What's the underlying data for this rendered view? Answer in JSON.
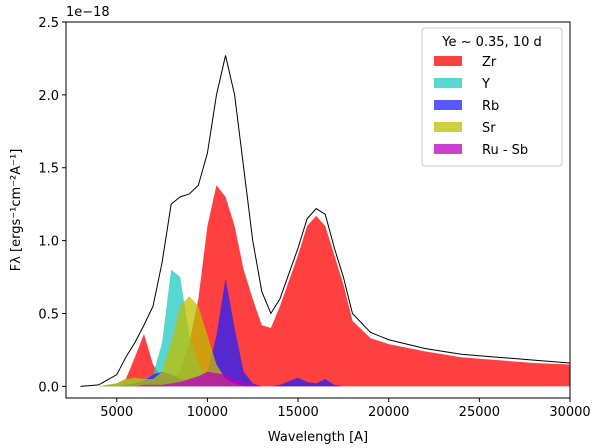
{
  "chart_data": {
    "type": "area",
    "offset_text": "1e−18",
    "xlabel": "Wavelength [A]",
    "ylabel": "Fλ [ergs⁻¹cm⁻²A⁻¹]",
    "legend_title": "Ye ~ 0.35, 10 d",
    "legend_loc": "upper right",
    "xlim": [
      2200,
      30000
    ],
    "ylim": [
      -0.08,
      2.5
    ],
    "xticks": [
      5000,
      10000,
      15000,
      20000,
      25000,
      30000
    ],
    "yticks": [
      {
        "value": 0,
        "label": "0.0"
      },
      {
        "value": 0.5,
        "label": "0.5"
      },
      {
        "value": 1,
        "label": "1.0"
      },
      {
        "value": 1.5,
        "label": "1.5"
      },
      {
        "value": 2,
        "label": "2.0"
      },
      {
        "value": 2.5,
        "label": "2.5"
      }
    ],
    "x": [
      3000,
      4000,
      5000,
      5500,
      6000,
      6500,
      7000,
      7500,
      8000,
      8500,
      9000,
      9500,
      10000,
      10500,
      11000,
      11500,
      12000,
      12500,
      13000,
      13500,
      14000,
      15000,
      15500,
      16000,
      16500,
      17000,
      17500,
      18000,
      19000,
      20000,
      22000,
      24000,
      26000,
      28000,
      30000
    ],
    "total": {
      "color": "#000000",
      "values": [
        0,
        0.01,
        0.08,
        0.2,
        0.3,
        0.42,
        0.55,
        0.85,
        1.25,
        1.3,
        1.32,
        1.38,
        1.6,
        2.0,
        2.27,
        2.0,
        1.5,
        1.0,
        0.65,
        0.5,
        0.6,
        0.95,
        1.15,
        1.22,
        1.18,
        0.95,
        0.75,
        0.5,
        0.37,
        0.32,
        0.26,
        0.22,
        0.2,
        0.18,
        0.16
      ]
    },
    "series": [
      {
        "name": "Zr",
        "color": "#ff0000",
        "values": [
          0,
          0,
          0.02,
          0.05,
          0.2,
          0.36,
          0.15,
          0.05,
          0.05,
          0.1,
          0.3,
          0.6,
          1.1,
          1.38,
          1.3,
          1.1,
          0.8,
          0.6,
          0.42,
          0.4,
          0.55,
          0.9,
          1.1,
          1.17,
          1.1,
          0.9,
          0.7,
          0.45,
          0.33,
          0.29,
          0.24,
          0.2,
          0.18,
          0.16,
          0.15
        ]
      },
      {
        "name": "Y",
        "color": "#20c8c0",
        "values": [
          0,
          0,
          0.02,
          0.04,
          0.05,
          0.05,
          0.08,
          0.3,
          0.8,
          0.75,
          0.35,
          0.15,
          0.05,
          0.02,
          0.01,
          0.01,
          0.01,
          0,
          0,
          0,
          0,
          0,
          0,
          0,
          0,
          0,
          0,
          0,
          0,
          0,
          0,
          0,
          0,
          0,
          0
        ]
      },
      {
        "name": "Rb",
        "color": "#2020ff",
        "values": [
          0,
          0,
          0,
          0.01,
          0.02,
          0.04,
          0.08,
          0.1,
          0.08,
          0.05,
          0.03,
          0.05,
          0.1,
          0.35,
          0.74,
          0.4,
          0.1,
          0.02,
          0,
          0,
          0.01,
          0.06,
          0.03,
          0.02,
          0.05,
          0.01,
          0,
          0,
          0,
          0,
          0,
          0,
          0,
          0,
          0
        ]
      },
      {
        "name": "Sr",
        "color": "#bfbf00",
        "values": [
          0,
          0,
          0.02,
          0.05,
          0.06,
          0.05,
          0.05,
          0.1,
          0.3,
          0.55,
          0.62,
          0.55,
          0.35,
          0.15,
          0.05,
          0.02,
          0,
          0,
          0,
          0,
          0,
          0,
          0,
          0,
          0,
          0,
          0,
          0,
          0,
          0,
          0,
          0,
          0,
          0,
          0
        ]
      },
      {
        "name": "Ru - Sb",
        "color": "#bf00bf",
        "values": [
          0,
          0,
          0,
          0,
          0,
          0.01,
          0.01,
          0.01,
          0.02,
          0.03,
          0.05,
          0.07,
          0.1,
          0.09,
          0.08,
          0.05,
          0.03,
          0.01,
          0,
          0,
          0,
          0,
          0,
          0,
          0,
          0,
          0,
          0,
          0,
          0,
          0,
          0,
          0,
          0,
          0
        ]
      }
    ]
  }
}
